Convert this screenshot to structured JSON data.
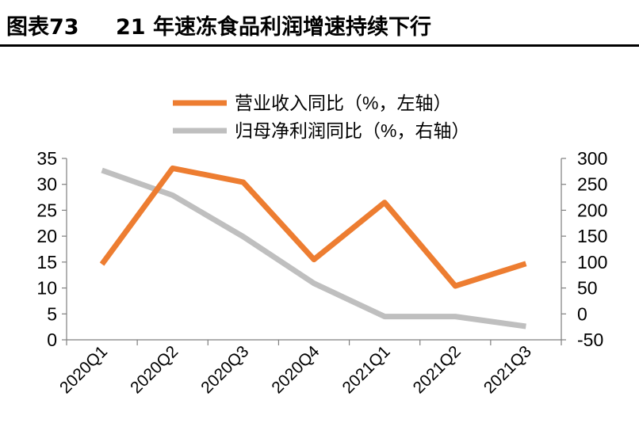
{
  "figure": {
    "number": "图表73",
    "title": "21 年速冻食品利润增速持续下行"
  },
  "chart_data": {
    "type": "line",
    "categories": [
      "2020Q1",
      "2020Q2",
      "2020Q3",
      "2020Q4",
      "2021Q1",
      "2021Q2",
      "2021Q3"
    ],
    "series": [
      {
        "name": "营业收入同比（%，左轴）",
        "axis": "left",
        "color": "#ED7D31",
        "values": [
          14.6,
          33.1,
          30.4,
          15.5,
          26.5,
          10.4,
          14.7
        ]
      },
      {
        "name": "归母净利润同比（%，右轴）",
        "axis": "right",
        "color": "#BFBFBF",
        "values": [
          277,
          229,
          149,
          59,
          -5,
          -5,
          -24
        ]
      }
    ],
    "y_left": {
      "min": 0,
      "max": 35,
      "ticks": [
        "0",
        "5",
        "10",
        "15",
        "20",
        "25",
        "30",
        "35"
      ]
    },
    "y_right": {
      "min": -50,
      "max": 300,
      "ticks": [
        "-50",
        "0",
        "50",
        "100",
        "150",
        "200",
        "250",
        "300"
      ]
    },
    "grid": false,
    "legend_position": "top-center"
  }
}
